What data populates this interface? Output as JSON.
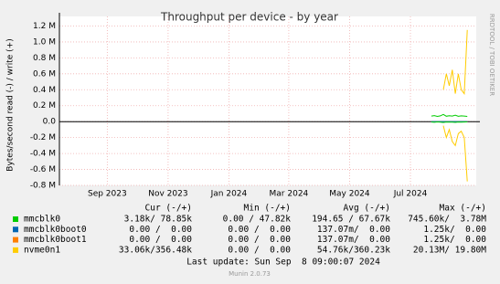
{
  "chart_data": {
    "type": "line",
    "title": "Throughput per device - by year",
    "y_label": "Bytes/second read (-) / write (+)",
    "side_text": "RRDTOOL / TOBI OETIKER",
    "xlim": [
      "2023-07-15",
      "2024-09-05"
    ],
    "xticks": [
      {
        "value": "2023-09-01",
        "label": "Sep 2023"
      },
      {
        "value": "2023-11-01",
        "label": "Nov 2023"
      },
      {
        "value": "2024-01-01",
        "label": "Jan 2024"
      },
      {
        "value": "2024-03-01",
        "label": "Mar 2024"
      },
      {
        "value": "2024-05-01",
        "label": "May 2024"
      },
      {
        "value": "2024-07-01",
        "label": "Jul 2024"
      }
    ],
    "ylim": [
      -800000,
      1320000
    ],
    "yticks": [
      {
        "value": 1200000,
        "label": "1.2 M"
      },
      {
        "value": 1000000,
        "label": "1.0 M"
      },
      {
        "value": 800000,
        "label": "0.8 M"
      },
      {
        "value": 600000,
        "label": "0.6 M"
      },
      {
        "value": 400000,
        "label": "0.4 M"
      },
      {
        "value": 200000,
        "label": "0.2 M"
      },
      {
        "value": 0,
        "label": "0.0"
      },
      {
        "value": -200000,
        "label": "-0.2 M"
      },
      {
        "value": -400000,
        "label": "-0.4 M"
      },
      {
        "value": -600000,
        "label": "-0.6 M"
      },
      {
        "value": -800000,
        "label": "-0.8 M"
      }
    ],
    "grid": true,
    "x": [
      "2024-07-22",
      "2024-07-25",
      "2024-07-28",
      "2024-07-31",
      "2024-08-03",
      "2024-08-06",
      "2024-08-09",
      "2024-08-12",
      "2024-08-15",
      "2024-08-18",
      "2024-08-21",
      "2024-08-24",
      "2024-08-27"
    ],
    "series": [
      {
        "name": "mmcblk0",
        "color": "#00cc00",
        "values": [
          70000,
          75000,
          65000,
          72000,
          90000,
          68000,
          74000,
          70000,
          80000,
          66000,
          72000,
          70000,
          65000
        ],
        "read_values": [
          -5000,
          -8000,
          -4000,
          -6000,
          -10000,
          -5000,
          -7000,
          -6000,
          -9000,
          -5000,
          -6000,
          -5000,
          -4000
        ]
      },
      {
        "name": "mmcblk0boot0",
        "color": "#0066b3",
        "values": [
          0,
          0,
          0,
          0,
          0,
          0,
          0,
          0,
          0,
          0,
          0,
          0,
          0
        ],
        "read_values": [
          0,
          0,
          0,
          0,
          0,
          0,
          0,
          0,
          0,
          0,
          0,
          0,
          0
        ]
      },
      {
        "name": "mmcblk0boot1",
        "color": "#ff8000",
        "values": [
          0,
          0,
          0,
          0,
          0,
          0,
          0,
          0,
          0,
          0,
          0,
          0,
          0
        ],
        "read_values": [
          0,
          0,
          0,
          0,
          0,
          0,
          0,
          0,
          0,
          0,
          0,
          0,
          0
        ]
      },
      {
        "name": "nvme0n1",
        "color": "#ffcc00",
        "values": [
          null,
          null,
          null,
          null,
          400000,
          600000,
          450000,
          650000,
          350000,
          600000,
          400000,
          350000,
          1150000
        ],
        "read_values": [
          null,
          null,
          null,
          null,
          -50000,
          -200000,
          -100000,
          -250000,
          -300000,
          -150000,
          -120000,
          -200000,
          -750000
        ]
      }
    ],
    "legend": {
      "headers": [
        "Cur (-/+)",
        "Min (-/+)",
        "Avg (-/+)",
        "Max (-/+)"
      ],
      "rows": [
        [
          "3.18k/ 78.85k",
          "0.00 / 47.82k",
          "194.65 / 67.67k",
          "745.60k/  3.78M"
        ],
        [
          "0.00 /  0.00",
          "0.00 /  0.00",
          "137.07m/  0.00",
          "1.25k/  0.00"
        ],
        [
          "0.00 /  0.00",
          "0.00 /  0.00",
          "137.07m/  0.00",
          "1.25k/  0.00"
        ],
        [
          "33.06k/356.48k",
          "0.00 /  0.00",
          "54.76k/360.23k",
          "20.13M/ 19.80M"
        ]
      ]
    },
    "last_update": "Last update: Sun Sep  8 09:00:07 2024",
    "footer": "Munin 2.0.73"
  }
}
